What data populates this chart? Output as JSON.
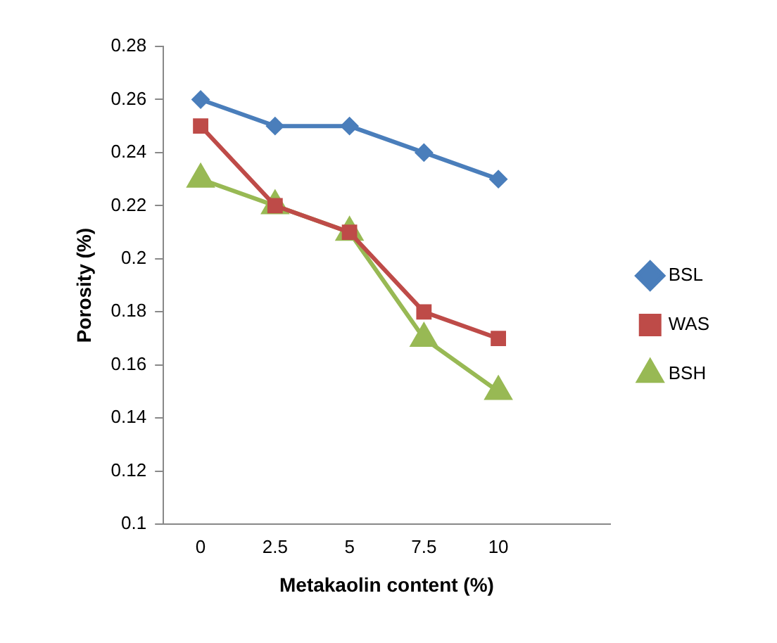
{
  "chart_data": {
    "type": "line",
    "xlabel": "Metakaolin content (%)",
    "ylabel": "Porosity (%)",
    "categories": [
      "0",
      "2.5",
      "5",
      "7.5",
      "10",
      null
    ],
    "series": [
      {
        "name": "BSL",
        "color": "#4a7ebb",
        "marker": "diamond",
        "values": [
          0.26,
          0.25,
          0.25,
          0.24,
          0.23,
          null
        ]
      },
      {
        "name": "WAS",
        "color": "#be4b48",
        "marker": "square",
        "values": [
          0.25,
          0.22,
          0.21,
          0.18,
          0.17,
          null
        ]
      },
      {
        "name": "BSH",
        "color": "#98b954",
        "marker": "triangle",
        "values": [
          0.23,
          0.22,
          0.21,
          0.17,
          0.15,
          null
        ]
      }
    ],
    "ylim": [
      0.1,
      0.28
    ],
    "yticks": [
      0.1,
      0.12,
      0.14,
      0.16,
      0.18,
      0.2,
      0.22,
      0.24,
      0.26,
      0.28
    ],
    "grid": false,
    "legend": "right"
  }
}
